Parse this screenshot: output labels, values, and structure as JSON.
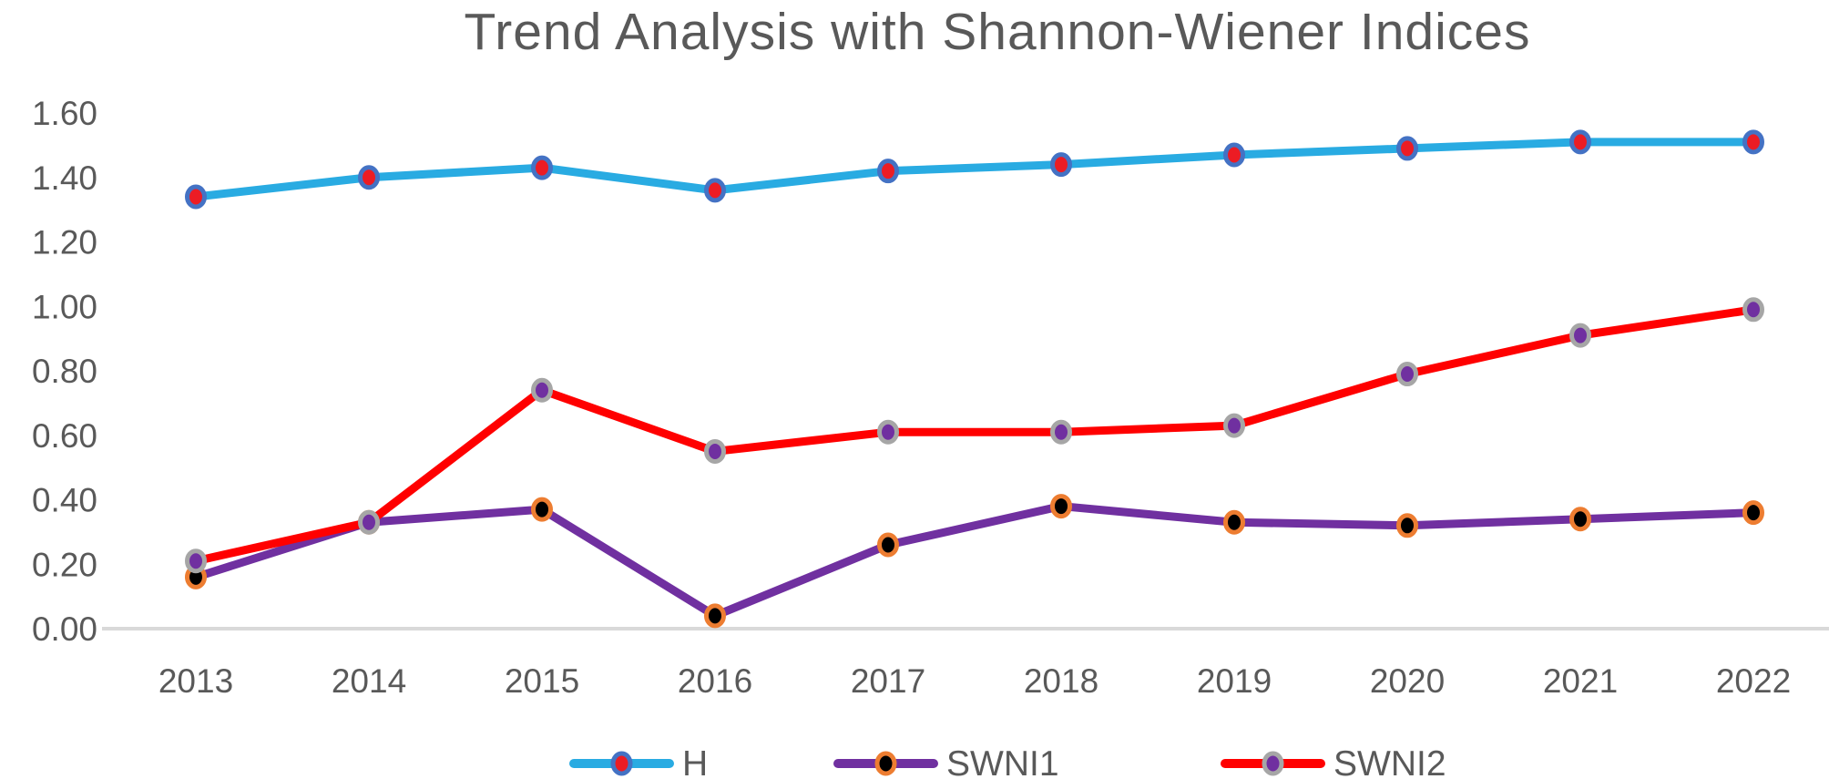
{
  "chart_data": {
    "type": "line",
    "title": "Trend Analysis with Shannon-Wiener Indices",
    "categories": [
      "2013",
      "2014",
      "2015",
      "2016",
      "2017",
      "2018",
      "2019",
      "2020",
      "2021",
      "2022"
    ],
    "series": [
      {
        "name": "H",
        "values": [
          1.34,
          1.4,
          1.43,
          1.36,
          1.42,
          1.44,
          1.47,
          1.49,
          1.51,
          1.51
        ],
        "line_color": "#29ABE2",
        "marker_fill": "#EC1C24",
        "marker_outline": "#4472C4"
      },
      {
        "name": "SWNI1",
        "values": [
          0.16,
          0.33,
          0.37,
          0.04,
          0.26,
          0.38,
          0.33,
          0.32,
          0.34,
          0.36
        ],
        "line_color": "#7030A0",
        "marker_fill": "#000000",
        "marker_outline": "#ED7D31"
      },
      {
        "name": "SWNI2",
        "values": [
          0.21,
          0.33,
          0.74,
          0.55,
          0.61,
          0.61,
          0.63,
          0.79,
          0.91,
          0.99
        ],
        "line_color": "#FF0000",
        "marker_fill": "#7030A0",
        "marker_outline": "#A6A6A6"
      }
    ],
    "xlabel": "",
    "ylabel": "",
    "ylim": [
      0,
      1.6
    ],
    "ytick_labels": [
      "0.00",
      "0.20",
      "0.40",
      "0.60",
      "0.80",
      "1.00",
      "1.20",
      "1.40",
      "1.60"
    ],
    "grid": false,
    "legend_position": "bottom",
    "colors": {
      "title_text": "#595959",
      "axis_text": "#595959",
      "axis_line": "#D9D9D9",
      "background": "#FFFFFF"
    }
  }
}
